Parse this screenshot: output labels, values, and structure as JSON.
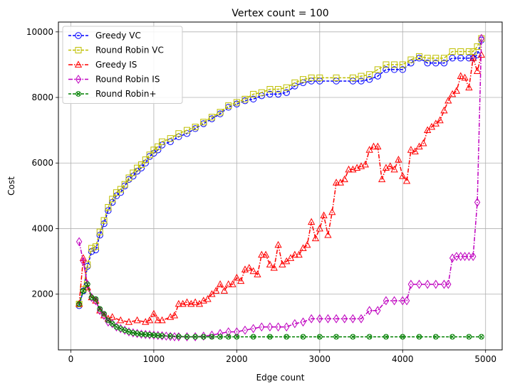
{
  "chart_data": {
    "type": "line",
    "title": "Vertex count = 100",
    "xlabel": "Edge count",
    "ylabel": "Cost",
    "xlim": [
      -150,
      5200
    ],
    "ylim": [
      300,
      10300
    ],
    "xticks": [
      0,
      1000,
      2000,
      3000,
      4000,
      5000
    ],
    "yticks": [
      2000,
      4000,
      6000,
      8000,
      10000
    ],
    "grid": true,
    "legend_position": "upper-left",
    "series": [
      {
        "name": "Greedy VC",
        "color": "#0000ff",
        "marker": "circle",
        "linestyle": "dashed",
        "x": [
          100,
          150,
          200,
          250,
          300,
          350,
          400,
          450,
          500,
          550,
          600,
          650,
          700,
          750,
          800,
          850,
          900,
          950,
          1000,
          1050,
          1100,
          1200,
          1300,
          1400,
          1500,
          1600,
          1700,
          1800,
          1900,
          2000,
          2100,
          2200,
          2300,
          2400,
          2500,
          2600,
          2700,
          2800,
          2900,
          3000,
          3200,
          3400,
          3500,
          3600,
          3700,
          3800,
          3900,
          4000,
          4100,
          4200,
          4300,
          4400,
          4500,
          4600,
          4700,
          4800,
          4850,
          4900,
          4950
        ],
        "y": [
          1650,
          2100,
          2850,
          3300,
          3350,
          3800,
          4150,
          4550,
          4800,
          5000,
          5100,
          5300,
          5500,
          5600,
          5750,
          5850,
          6000,
          6200,
          6300,
          6400,
          6550,
          6650,
          6800,
          6900,
          7050,
          7200,
          7350,
          7500,
          7700,
          7800,
          7900,
          7950,
          8050,
          8100,
          8100,
          8150,
          8350,
          8450,
          8500,
          8500,
          8500,
          8500,
          8500,
          8550,
          8650,
          8850,
          8850,
          8850,
          9050,
          9200,
          9050,
          9050,
          9050,
          9200,
          9200,
          9200,
          9200,
          9300,
          9750
        ]
      },
      {
        "name": "Round Robin VC",
        "color": "#bfbf00",
        "marker": "square",
        "linestyle": "dashed",
        "x": [
          100,
          150,
          200,
          250,
          300,
          350,
          400,
          450,
          500,
          550,
          600,
          650,
          700,
          750,
          800,
          850,
          900,
          950,
          1000,
          1050,
          1100,
          1200,
          1300,
          1400,
          1500,
          1600,
          1700,
          1800,
          1900,
          2000,
          2100,
          2200,
          2300,
          2400,
          2500,
          2600,
          2700,
          2800,
          2900,
          3000,
          3200,
          3400,
          3500,
          3600,
          3700,
          3800,
          3900,
          4000,
          4100,
          4200,
          4300,
          4400,
          4500,
          4600,
          4700,
          4800,
          4850,
          4900,
          4950
        ],
        "y": [
          1700,
          2150,
          2900,
          3400,
          3450,
          3900,
          4250,
          4650,
          4900,
          5100,
          5200,
          5350,
          5550,
          5700,
          5850,
          5950,
          6100,
          6250,
          6400,
          6500,
          6650,
          6750,
          6900,
          7000,
          7100,
          7250,
          7400,
          7550,
          7750,
          7850,
          7950,
          8100,
          8150,
          8250,
          8250,
          8300,
          8450,
          8550,
          8600,
          8600,
          8600,
          8600,
          8650,
          8700,
          8850,
          9000,
          9000,
          9000,
          9150,
          9250,
          9200,
          9200,
          9200,
          9400,
          9400,
          9400,
          9400,
          9550,
          9800
        ]
      },
      {
        "name": "Greedy IS",
        "color": "#ff0000",
        "marker": "triangle",
        "linestyle": "dashdot",
        "x": [
          100,
          150,
          200,
          250,
          300,
          350,
          400,
          450,
          500,
          600,
          700,
          800,
          900,
          950,
          1000,
          1050,
          1100,
          1200,
          1250,
          1300,
          1350,
          1400,
          1450,
          1500,
          1550,
          1600,
          1650,
          1700,
          1750,
          1800,
          1850,
          1900,
          1950,
          2000,
          2050,
          2100,
          2150,
          2200,
          2250,
          2300,
          2350,
          2400,
          2450,
          2500,
          2550,
          2600,
          2650,
          2700,
          2750,
          2800,
          2850,
          2900,
          2950,
          3000,
          3050,
          3100,
          3150,
          3200,
          3250,
          3300,
          3350,
          3400,
          3450,
          3500,
          3550,
          3600,
          3650,
          3700,
          3750,
          3800,
          3850,
          3900,
          3950,
          4000,
          4050,
          4100,
          4150,
          4200,
          4250,
          4300,
          4350,
          4400,
          4450,
          4500,
          4550,
          4600,
          4650,
          4700,
          4750,
          4800,
          4850,
          4900,
          4950
        ],
        "y": [
          1700,
          3100,
          2200,
          1900,
          1800,
          1500,
          1350,
          1250,
          1300,
          1200,
          1150,
          1200,
          1150,
          1200,
          1400,
          1200,
          1200,
          1300,
          1350,
          1700,
          1700,
          1750,
          1700,
          1750,
          1700,
          1800,
          1850,
          2000,
          2100,
          2300,
          2100,
          2300,
          2300,
          2500,
          2400,
          2750,
          2800,
          2700,
          2600,
          3200,
          3200,
          2900,
          2800,
          3500,
          2900,
          3000,
          3100,
          3200,
          3200,
          3400,
          3500,
          4200,
          3700,
          4000,
          4400,
          3800,
          4500,
          5400,
          5400,
          5500,
          5800,
          5800,
          5850,
          5900,
          5950,
          6400,
          6500,
          6500,
          5500,
          5850,
          5900,
          5800,
          6100,
          5600,
          5450,
          6400,
          6350,
          6500,
          6600,
          7000,
          7100,
          7200,
          7300,
          7600,
          7900,
          8100,
          8200,
          8650,
          8600,
          8300,
          9200,
          8800,
          9300
        ]
      },
      {
        "name": "Round Robin IS",
        "color": "#bf00bf",
        "marker": "diamond",
        "linestyle": "dashdot",
        "x": [
          100,
          150,
          200,
          250,
          300,
          350,
          400,
          450,
          500,
          550,
          600,
          650,
          700,
          750,
          800,
          850,
          900,
          950,
          1000,
          1050,
          1100,
          1150,
          1200,
          1250,
          1300,
          1400,
          1500,
          1600,
          1700,
          1800,
          1900,
          2000,
          2100,
          2200,
          2300,
          2400,
          2500,
          2600,
          2700,
          2800,
          2900,
          3000,
          3100,
          3200,
          3300,
          3400,
          3500,
          3600,
          3700,
          3800,
          3900,
          4000,
          4050,
          4100,
          4200,
          4300,
          4400,
          4500,
          4550,
          4600,
          4650,
          4700,
          4750,
          4800,
          4850,
          4900,
          4950
        ],
        "y": [
          3600,
          3000,
          2300,
          1900,
          1800,
          1500,
          1350,
          1150,
          1100,
          1000,
          950,
          900,
          850,
          820,
          800,
          780,
          770,
          760,
          750,
          740,
          730,
          720,
          710,
          700,
          700,
          700,
          700,
          720,
          750,
          800,
          850,
          850,
          900,
          950,
          1000,
          1000,
          1000,
          1000,
          1100,
          1150,
          1250,
          1250,
          1250,
          1250,
          1250,
          1250,
          1250,
          1500,
          1500,
          1800,
          1800,
          1800,
          1800,
          2300,
          2300,
          2300,
          2300,
          2300,
          2300,
          3100,
          3150,
          3150,
          3150,
          3150,
          3150,
          4800,
          9800
        ]
      },
      {
        "name": "Round Robin+",
        "color": "#008000",
        "marker": "x",
        "linestyle": "dashed",
        "x": [
          100,
          150,
          200,
          250,
          300,
          350,
          400,
          450,
          500,
          550,
          600,
          650,
          700,
          750,
          800,
          850,
          900,
          950,
          1000,
          1050,
          1100,
          1200,
          1300,
          1400,
          1500,
          1600,
          1700,
          1800,
          1900,
          2000,
          2200,
          2400,
          2600,
          2800,
          3000,
          3200,
          3400,
          3600,
          3800,
          4000,
          4200,
          4400,
          4600,
          4800,
          4950
        ],
        "y": [
          1700,
          2100,
          2300,
          1900,
          1850,
          1550,
          1400,
          1200,
          1100,
          1000,
          950,
          900,
          850,
          820,
          800,
          780,
          770,
          760,
          750,
          740,
          730,
          720,
          710,
          700,
          700,
          700,
          700,
          700,
          700,
          700,
          700,
          700,
          700,
          700,
          700,
          700,
          700,
          700,
          700,
          700,
          700,
          700,
          700,
          700,
          700
        ]
      }
    ]
  }
}
